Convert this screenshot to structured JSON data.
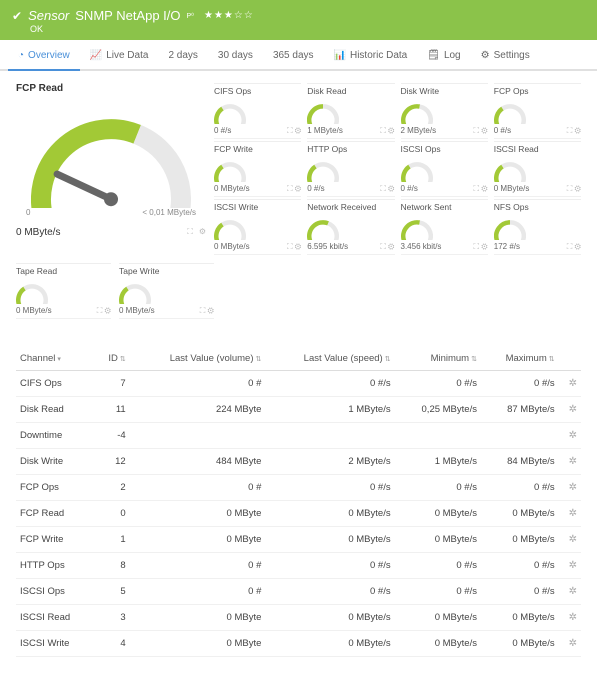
{
  "header": {
    "sensor_label": "Sensor",
    "name": "SNMP NetApp I/O",
    "stars_filled": 3,
    "stars_empty": 2,
    "status": "OK"
  },
  "tabs": [
    {
      "icon": "◔",
      "label": "Overview",
      "active": true
    },
    {
      "icon": "📈",
      "label": "Live Data"
    },
    {
      "icon": "",
      "label": "2 days"
    },
    {
      "icon": "",
      "label": "30 days"
    },
    {
      "icon": "",
      "label": "365 days"
    },
    {
      "icon": "📊",
      "label": "Historic Data"
    },
    {
      "icon": "🗒",
      "label": "Log"
    },
    {
      "icon": "⚙",
      "label": "Settings"
    }
  ],
  "colors": {
    "accent": "#a2c936",
    "needle": "#666666"
  },
  "big_gauge": {
    "label": "FCP Read",
    "value": "0 MByte/s",
    "scale_left": "0",
    "scale_right": "< 0,01 MByte/s",
    "fill": 0.6
  },
  "mini_gauges": [
    {
      "label": "CIFS Ops",
      "value": "0 #/s",
      "fill": 0.35
    },
    {
      "label": "Disk Read",
      "value": "1 MByte/s",
      "fill": 0.5
    },
    {
      "label": "Disk Write",
      "value": "2 MByte/s",
      "fill": 0.55
    },
    {
      "label": "FCP Ops",
      "value": "0 #/s",
      "fill": 0.35
    },
    {
      "label": "FCP Write",
      "value": "0 MByte/s",
      "fill": 0.35
    },
    {
      "label": "HTTP Ops",
      "value": "0 #/s",
      "fill": 0.35
    },
    {
      "label": "ISCSI Ops",
      "value": "0 #/s",
      "fill": 0.35
    },
    {
      "label": "ISCSI Read",
      "value": "0 MByte/s",
      "fill": 0.35
    },
    {
      "label": "ISCSI Write",
      "value": "0 MByte/s",
      "fill": 0.35
    },
    {
      "label": "Network Received",
      "value": "6.595 kbit/s",
      "fill": 0.6
    },
    {
      "label": "Network Sent",
      "value": "3.456 kbit/s",
      "fill": 0.55
    },
    {
      "label": "NFS Ops",
      "value": "172 #/s",
      "fill": 0.5
    }
  ],
  "tape": [
    {
      "label": "Tape Read",
      "value": "0 MByte/s",
      "fill": 0.35
    },
    {
      "label": "Tape Write",
      "value": "0 MByte/s",
      "fill": 0.35
    }
  ],
  "table": {
    "columns": [
      "Channel",
      "ID",
      "Last Value (volume)",
      "Last Value (speed)",
      "Minimum",
      "Maximum",
      ""
    ],
    "rows": [
      [
        "CIFS Ops",
        "7",
        "0 #",
        "0 #/s",
        "0 #/s",
        "0 #/s"
      ],
      [
        "Disk Read",
        "11",
        "224 MByte",
        "1 MByte/s",
        "0,25 MByte/s",
        "87 MByte/s"
      ],
      [
        "Downtime",
        "-4",
        "",
        "",
        "",
        ""
      ],
      [
        "Disk Write",
        "12",
        "484 MByte",
        "2 MByte/s",
        "1 MByte/s",
        "84 MByte/s"
      ],
      [
        "FCP Ops",
        "2",
        "0 #",
        "0 #/s",
        "0 #/s",
        "0 #/s"
      ],
      [
        "FCP Read",
        "0",
        "0 MByte",
        "0 MByte/s",
        "0 MByte/s",
        "0 MByte/s"
      ],
      [
        "FCP Write",
        "1",
        "0 MByte",
        "0 MByte/s",
        "0 MByte/s",
        "0 MByte/s"
      ],
      [
        "HTTP Ops",
        "8",
        "0 #",
        "0 #/s",
        "0 #/s",
        "0 #/s"
      ],
      [
        "ISCSI Ops",
        "5",
        "0 #",
        "0 #/s",
        "0 #/s",
        "0 #/s"
      ],
      [
        "ISCSI Read",
        "3",
        "0 MByte",
        "0 MByte/s",
        "0 MByte/s",
        "0 MByte/s"
      ],
      [
        "ISCSI Write",
        "4",
        "0 MByte",
        "0 MByte/s",
        "0 MByte/s",
        "0 MByte/s"
      ]
    ]
  }
}
